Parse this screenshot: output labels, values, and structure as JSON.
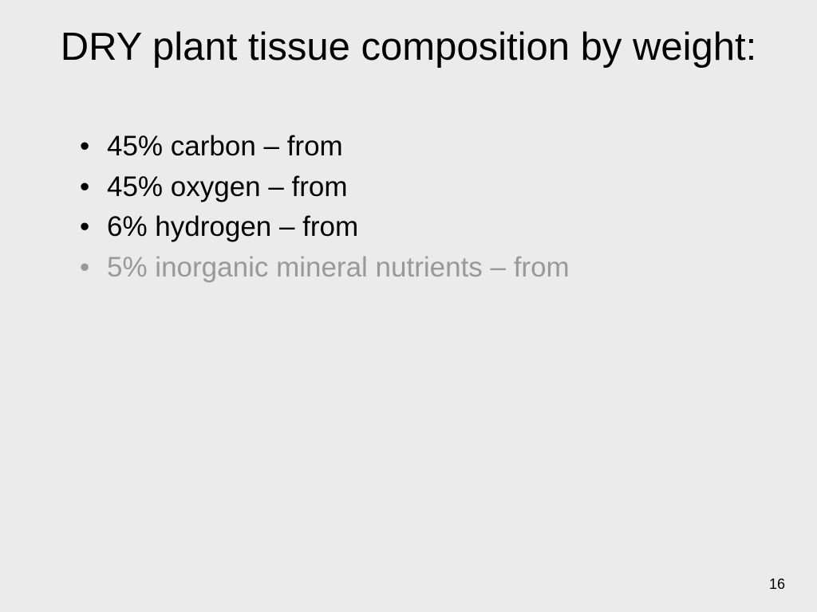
{
  "slide": {
    "title": "DRY plant tissue composition by weight:",
    "bullets": [
      {
        "text": "45% carbon – from",
        "dimmed": false
      },
      {
        "text": "45% oxygen – from",
        "dimmed": false
      },
      {
        "text": "6% hydrogen – from",
        "dimmed": false
      },
      {
        "text": "5% inorganic mineral nutrients – from",
        "dimmed": true
      }
    ],
    "page_number": "16",
    "colors": {
      "background": "#ebebeb",
      "text_normal": "#000000",
      "text_dimmed": "#999999"
    },
    "typography": {
      "title_fontsize": 49,
      "bullet_fontsize": 35,
      "pagenum_fontsize": 18,
      "font_family": "Arial"
    }
  }
}
